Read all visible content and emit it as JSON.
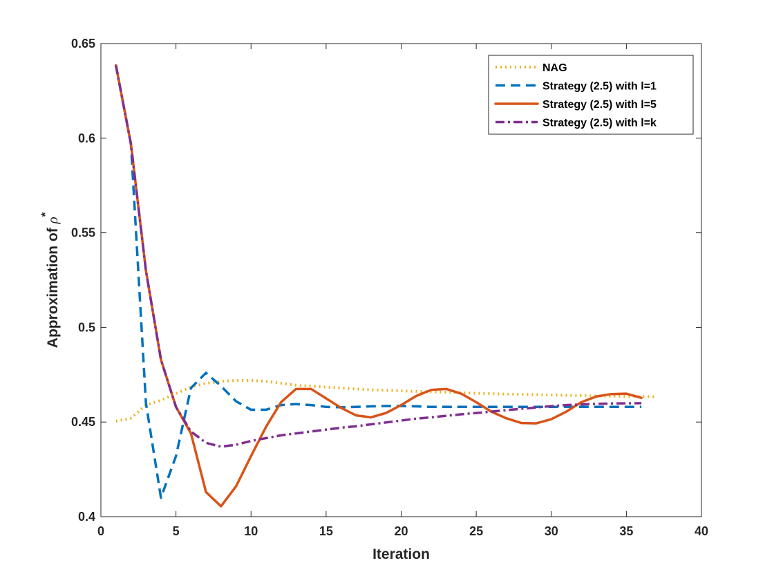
{
  "chart_data": {
    "type": "line",
    "title": "",
    "xlabel": "Iteration",
    "ylabel_prefix": "Approximation of ",
    "ylabel_symbol": "ρ",
    "ylabel_superscript": "*",
    "xlim": [
      0,
      40
    ],
    "ylim": [
      0.4,
      0.65
    ],
    "xticks": [
      0,
      5,
      10,
      15,
      20,
      25,
      30,
      35,
      40
    ],
    "yticks": [
      0.4,
      0.45,
      0.5,
      0.55,
      0.6,
      0.65
    ],
    "ytick_labels": [
      "0.4",
      "0.45",
      "0.5",
      "0.55",
      "0.6",
      "0.65"
    ],
    "grid": false,
    "legend_position": "top-right",
    "series": [
      {
        "name": "NAG",
        "color": "#EDB120",
        "style": "dotted",
        "x": [
          1,
          2,
          3,
          4,
          5,
          6,
          7,
          8,
          9,
          10,
          11,
          12,
          13,
          14,
          15,
          16,
          17,
          18,
          19,
          20,
          21,
          22,
          23,
          24,
          25,
          26,
          27,
          28,
          29,
          30,
          31,
          32,
          33,
          34,
          35,
          36,
          37
        ],
        "y": [
          0.4505,
          0.452,
          0.459,
          0.4615,
          0.465,
          0.4685,
          0.4705,
          0.4715,
          0.472,
          0.472,
          0.4715,
          0.4705,
          0.4695,
          0.469,
          0.4685,
          0.468,
          0.4675,
          0.467,
          0.4668,
          0.4665,
          0.4662,
          0.466,
          0.4658,
          0.4655,
          0.4652,
          0.465,
          0.4648,
          0.4646,
          0.4645,
          0.4643,
          0.4641,
          0.464,
          0.4638,
          0.4637,
          0.4636,
          0.4635,
          0.4634
        ]
      },
      {
        "name": "Strategy (2.5) with l=1",
        "color": "#0072BD",
        "style": "dashed",
        "x": [
          1,
          2,
          3,
          4,
          5,
          6,
          7,
          8,
          9,
          10,
          11,
          12,
          13,
          14,
          15,
          16,
          17,
          18,
          19,
          20,
          21,
          22,
          23,
          24,
          25,
          26,
          27,
          28,
          29,
          30,
          31,
          32,
          33,
          34,
          35,
          36
        ],
        "y": [
          0.6385,
          0.597,
          0.46,
          0.41,
          0.432,
          0.468,
          0.476,
          0.469,
          0.461,
          0.4565,
          0.4565,
          0.459,
          0.4595,
          0.459,
          0.458,
          0.4578,
          0.458,
          0.4583,
          0.4585,
          0.4585,
          0.4583,
          0.458,
          0.458,
          0.458,
          0.458,
          0.458,
          0.458,
          0.458,
          0.458,
          0.458,
          0.458,
          0.458,
          0.458,
          0.458,
          0.458,
          0.458
        ]
      },
      {
        "name": "Strategy (2.5) with l=5",
        "color": "#D95319",
        "style": "solid",
        "x": [
          1,
          2,
          3,
          4,
          5,
          6,
          7,
          8,
          9,
          10,
          11,
          12,
          13,
          14,
          15,
          16,
          17,
          18,
          19,
          20,
          21,
          22,
          23,
          24,
          25,
          26,
          27,
          28,
          29,
          30,
          31,
          32,
          33,
          34,
          35,
          36
        ],
        "y": [
          0.6385,
          0.597,
          0.53,
          0.483,
          0.458,
          0.444,
          0.413,
          0.4055,
          0.416,
          0.432,
          0.4475,
          0.4605,
          0.4675,
          0.4675,
          0.4625,
          0.4575,
          0.4535,
          0.4525,
          0.4548,
          0.459,
          0.4638,
          0.467,
          0.4675,
          0.465,
          0.4605,
          0.4555,
          0.452,
          0.4495,
          0.4493,
          0.4515,
          0.4555,
          0.4605,
          0.4635,
          0.4648,
          0.465,
          0.4628
        ]
      },
      {
        "name": "Strategy (2.5) with l=k",
        "color": "#7E2F8E",
        "style": "dashdot",
        "x": [
          1,
          2,
          3,
          4,
          5,
          6,
          7,
          8,
          9,
          10,
          11,
          12,
          13,
          14,
          15,
          16,
          17,
          18,
          19,
          20,
          21,
          22,
          23,
          24,
          25,
          26,
          27,
          28,
          29,
          30,
          31,
          32,
          33,
          34,
          35,
          36
        ],
        "y": [
          0.6385,
          0.597,
          0.53,
          0.483,
          0.458,
          0.445,
          0.439,
          0.437,
          0.438,
          0.44,
          0.4415,
          0.443,
          0.444,
          0.445,
          0.446,
          0.447,
          0.4478,
          0.4488,
          0.4498,
          0.4508,
          0.4518,
          0.4525,
          0.4533,
          0.4541,
          0.4548,
          0.4555,
          0.4563,
          0.457,
          0.4577,
          0.4584,
          0.459,
          0.4593,
          0.4596,
          0.4598,
          0.4599,
          0.46
        ]
      }
    ]
  }
}
